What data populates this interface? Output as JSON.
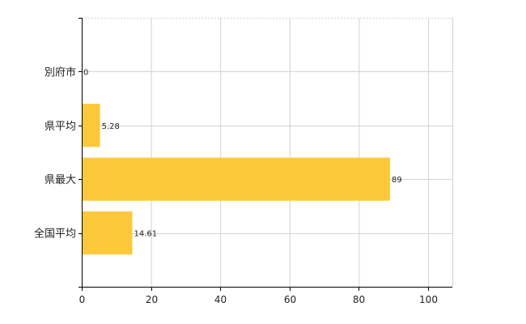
{
  "chart_data": {
    "type": "bar",
    "orientation": "horizontal",
    "categories": [
      "別府市",
      "県平均",
      "県最大",
      "全国平均"
    ],
    "values": [
      0,
      5.28,
      89,
      14.61
    ],
    "value_labels": [
      "0",
      "5.28",
      "89",
      "14.61"
    ],
    "xlim": [
      0,
      107
    ],
    "x_ticks": [
      0,
      20,
      40,
      60,
      80,
      100
    ],
    "x_tick_labels": [
      "0",
      "20",
      "40",
      "60",
      "80",
      "100"
    ],
    "grid": true,
    "bar_color": "#FDC83A",
    "grid_color": "#D3D3D3",
    "axis_color": "#000000"
  }
}
